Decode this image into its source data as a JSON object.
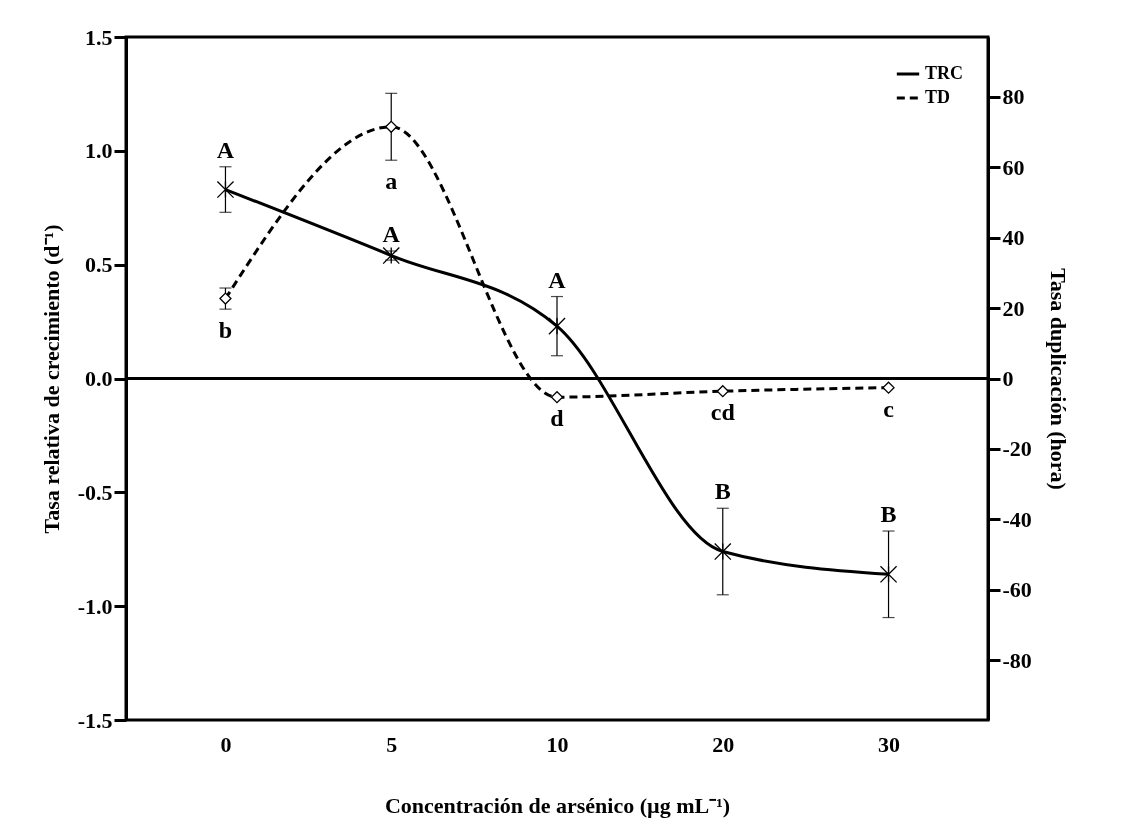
{
  "chart_data": {
    "type": "line",
    "xlabel": "Concentración de arsénico (µg mL⁻¹)",
    "ylabel": "Tasa relativa de crecimiento (d⁻¹)",
    "y2label": "Tasa duplicación (hora)",
    "categories": [
      "0",
      "5",
      "10",
      "20",
      "30"
    ],
    "ylim": [
      -1.5,
      1.5
    ],
    "yticks": [
      {
        "value": -1.5,
        "label": "-1.5"
      },
      {
        "value": -1,
        "label": "-1.0"
      },
      {
        "value": -0.5,
        "label": "-0.5"
      },
      {
        "value": 0,
        "label": "0.0"
      },
      {
        "value": 0.5,
        "label": "0.5"
      },
      {
        "value": 1,
        "label": "1.0"
      },
      {
        "value": 1.5,
        "label": "1.5"
      }
    ],
    "y2lim": [
      -97,
      97
    ],
    "y2ticks": [
      -80,
      -60,
      -40,
      -20,
      0,
      20,
      40,
      60,
      80
    ],
    "series": [
      {
        "name": "TRC",
        "color": "#000000",
        "marker": "cross",
        "line_style": "solid",
        "values": [
          0.83,
          0.54,
          0.23,
          -0.76,
          -0.86
        ],
        "errors": [
          0.1,
          0.02,
          0.13,
          0.19,
          0.19
        ],
        "value_labels": [
          "A",
          "A",
          "A",
          "B",
          "B"
        ]
      },
      {
        "name": "TD",
        "color": "#000000",
        "marker": "diamond",
        "line_style": "dashed",
        "axis": "y2",
        "values": [
          22.7,
          71.5,
          -5.3,
          -3.6,
          -2.6
        ],
        "errors": [
          3,
          9.5,
          null,
          null,
          null
        ],
        "value_labels": [
          "b",
          "a",
          "d",
          "cd",
          "c"
        ]
      }
    ],
    "ref_lines": [
      {
        "axis": "y",
        "value": 0
      }
    ],
    "legend": "top right"
  }
}
